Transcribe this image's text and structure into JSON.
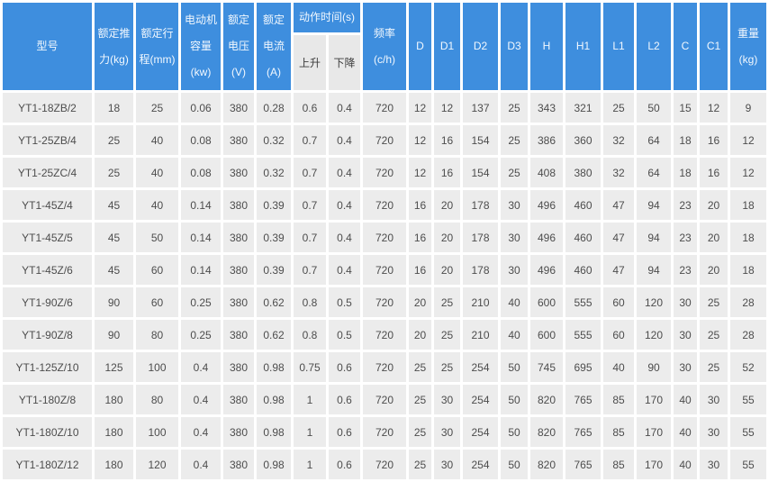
{
  "colors": {
    "header_bg": "#3e8ede",
    "header_text": "#f2f8fe",
    "subheader_bg": "#e8e8e8",
    "subheader_text": "#3c3c3c",
    "cell_bg": "#ececec",
    "cell_text": "#4d4d4d",
    "gap": "#ffffff"
  },
  "table": {
    "header_row1": [
      {
        "key": "model",
        "label": "型号"
      },
      {
        "key": "rated-thrust",
        "label": "额定推\n力(kg)"
      },
      {
        "key": "rated-stroke",
        "label": "额定行\n程(mm)"
      },
      {
        "key": "motor-capacity",
        "label": "电动机\n容量\n(kw)"
      },
      {
        "key": "rated-voltage",
        "label": "额定\n电压\n(V)"
      },
      {
        "key": "rated-current",
        "label": "额定\n电流\n(A)"
      },
      {
        "key": "action-time",
        "label": "动作时间(s)"
      },
      {
        "key": "frequency",
        "label": "频率\n(c/h)"
      },
      {
        "key": "dim-d",
        "label": "D"
      },
      {
        "key": "dim-d1",
        "label": "D1"
      },
      {
        "key": "dim-d2",
        "label": "D2"
      },
      {
        "key": "dim-d3",
        "label": "D3"
      },
      {
        "key": "dim-h",
        "label": "H"
      },
      {
        "key": "dim-h1",
        "label": "H1"
      },
      {
        "key": "dim-l1",
        "label": "L1"
      },
      {
        "key": "dim-l2",
        "label": "L2"
      },
      {
        "key": "dim-c",
        "label": "C"
      },
      {
        "key": "dim-c1",
        "label": "C1"
      },
      {
        "key": "weight",
        "label": "重量\n(kg)"
      }
    ],
    "header_row2": [
      {
        "key": "rise",
        "label": "上升"
      },
      {
        "key": "fall",
        "label": "下降"
      }
    ],
    "rows": [
      [
        "YT1-18ZB/2",
        "18",
        "25",
        "0.06",
        "380",
        "0.28",
        "0.6",
        "0.4",
        "720",
        "12",
        "12",
        "137",
        "25",
        "343",
        "321",
        "25",
        "50",
        "15",
        "12",
        "9"
      ],
      [
        "YT1-25ZB/4",
        "25",
        "40",
        "0.08",
        "380",
        "0.32",
        "0.7",
        "0.4",
        "720",
        "12",
        "16",
        "154",
        "25",
        "386",
        "360",
        "32",
        "64",
        "18",
        "16",
        "12"
      ],
      [
        "YT1-25ZC/4",
        "25",
        "40",
        "0.08",
        "380",
        "0.32",
        "0.7",
        "0.4",
        "720",
        "12",
        "16",
        "154",
        "25",
        "408",
        "380",
        "32",
        "64",
        "18",
        "16",
        "12"
      ],
      [
        "YT1-45Z/4",
        "45",
        "40",
        "0.14",
        "380",
        "0.39",
        "0.7",
        "0.4",
        "720",
        "16",
        "20",
        "178",
        "30",
        "496",
        "460",
        "47",
        "94",
        "23",
        "20",
        "18"
      ],
      [
        "YT1-45Z/5",
        "45",
        "50",
        "0.14",
        "380",
        "0.39",
        "0.7",
        "0.4",
        "720",
        "16",
        "20",
        "178",
        "30",
        "496",
        "460",
        "47",
        "94",
        "23",
        "20",
        "18"
      ],
      [
        "YT1-45Z/6",
        "45",
        "60",
        "0.14",
        "380",
        "0.39",
        "0.7",
        "0.4",
        "720",
        "16",
        "20",
        "178",
        "30",
        "496",
        "460",
        "47",
        "94",
        "23",
        "20",
        "18"
      ],
      [
        "YT1-90Z/6",
        "90",
        "60",
        "0.25",
        "380",
        "0.62",
        "0.8",
        "0.5",
        "720",
        "20",
        "25",
        "210",
        "40",
        "600",
        "555",
        "60",
        "120",
        "30",
        "25",
        "28"
      ],
      [
        "YT1-90Z/8",
        "90",
        "80",
        "0.25",
        "380",
        "0.62",
        "0.8",
        "0.5",
        "720",
        "20",
        "25",
        "210",
        "40",
        "600",
        "555",
        "60",
        "120",
        "30",
        "25",
        "28"
      ],
      [
        "YT1-125Z/10",
        "125",
        "100",
        "0.4",
        "380",
        "0.98",
        "0.75",
        "0.6",
        "720",
        "25",
        "25",
        "254",
        "50",
        "745",
        "695",
        "40",
        "90",
        "30",
        "25",
        "52"
      ],
      [
        "YT1-180Z/8",
        "180",
        "80",
        "0.4",
        "380",
        "0.98",
        "1",
        "0.6",
        "720",
        "25",
        "30",
        "254",
        "50",
        "820",
        "765",
        "85",
        "170",
        "40",
        "30",
        "55"
      ],
      [
        "YT1-180Z/10",
        "180",
        "100",
        "0.4",
        "380",
        "0.98",
        "1",
        "0.6",
        "720",
        "25",
        "30",
        "254",
        "50",
        "820",
        "765",
        "85",
        "170",
        "40",
        "30",
        "55"
      ],
      [
        "YT1-180Z/12",
        "180",
        "120",
        "0.4",
        "380",
        "0.98",
        "1",
        "0.6",
        "720",
        "25",
        "30",
        "254",
        "50",
        "820",
        "765",
        "85",
        "170",
        "40",
        "30",
        "55"
      ]
    ]
  }
}
